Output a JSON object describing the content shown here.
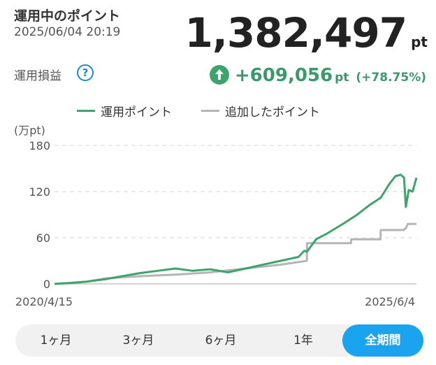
{
  "header": {
    "title": "運用中のポイント",
    "datetime": "2025/06/04 20:19",
    "total_value": "1,382,497",
    "total_unit": "pt",
    "profit_label": "運用損益",
    "help_icon": "question-circle-icon",
    "profit_icon": "arrow-up-circle-icon",
    "profit_value": "+609,056",
    "profit_unit": "pt",
    "profit_pct": "(+78.75%)"
  },
  "colors": {
    "accent_green": "#3a9a6a",
    "line_green": "#3fa36e",
    "line_gray": "#b5b5b5",
    "tab_active": "#1aa4f0"
  },
  "chart_data": {
    "type": "line",
    "unit_label": "(万pt)",
    "ylim": [
      0,
      180
    ],
    "yticks": [
      0,
      60,
      120,
      180
    ],
    "x_start_label": "2020/4/15",
    "x_end_label": "2025/6/4",
    "grid": true,
    "legend_position": "top",
    "series": [
      {
        "name": "運用ポイント",
        "color": "#3fa36e",
        "x": [
          "2020-04-15",
          "2020-07-01",
          "2020-10-01",
          "2021-01-01",
          "2021-04-01",
          "2021-07-01",
          "2021-10-01",
          "2022-01-01",
          "2022-04-01",
          "2022-07-01",
          "2022-10-01",
          "2023-01-01",
          "2023-04-01",
          "2023-07-01",
          "2023-10-01",
          "2023-11-01",
          "2023-11-15",
          "2024-01-01",
          "2024-03-01",
          "2024-06-01",
          "2024-08-01",
          "2024-10-01",
          "2024-12-01",
          "2025-01-15",
          "2025-02-15",
          "2025-03-15",
          "2025-04-01",
          "2025-04-10",
          "2025-04-25",
          "2025-05-15",
          "2025-06-04"
        ],
        "values": [
          0,
          1,
          3,
          6,
          10,
          14,
          17,
          20,
          17,
          19,
          15,
          20,
          25,
          30,
          35,
          43,
          42,
          58,
          66,
          80,
          90,
          102,
          112,
          130,
          140,
          142,
          138,
          100,
          122,
          120,
          138
        ]
      },
      {
        "name": "追加したポイント",
        "color": "#b5b5b5",
        "x": [
          "2020-04-15",
          "2020-10-01",
          "2021-01-01",
          "2021-07-01",
          "2022-01-01",
          "2022-07-01",
          "2023-01-01",
          "2023-07-01",
          "2023-11-14",
          "2023-11-15",
          "2024-06-30",
          "2024-07-01",
          "2024-11-30",
          "2024-12-01",
          "2025-03-31",
          "2025-04-01",
          "2025-04-10",
          "2025-04-20",
          "2025-06-04"
        ],
        "values": [
          0,
          3,
          7,
          10,
          12,
          15,
          20,
          25,
          30,
          53,
          53,
          58,
          58,
          70,
          70,
          71,
          72,
          78,
          78
        ]
      }
    ]
  },
  "tabs": [
    {
      "label": "1ヶ月"
    },
    {
      "label": "3ヶ月"
    },
    {
      "label": "6ヶ月"
    },
    {
      "label": "1年"
    },
    {
      "label": "全期間"
    }
  ],
  "active_tab": 4
}
